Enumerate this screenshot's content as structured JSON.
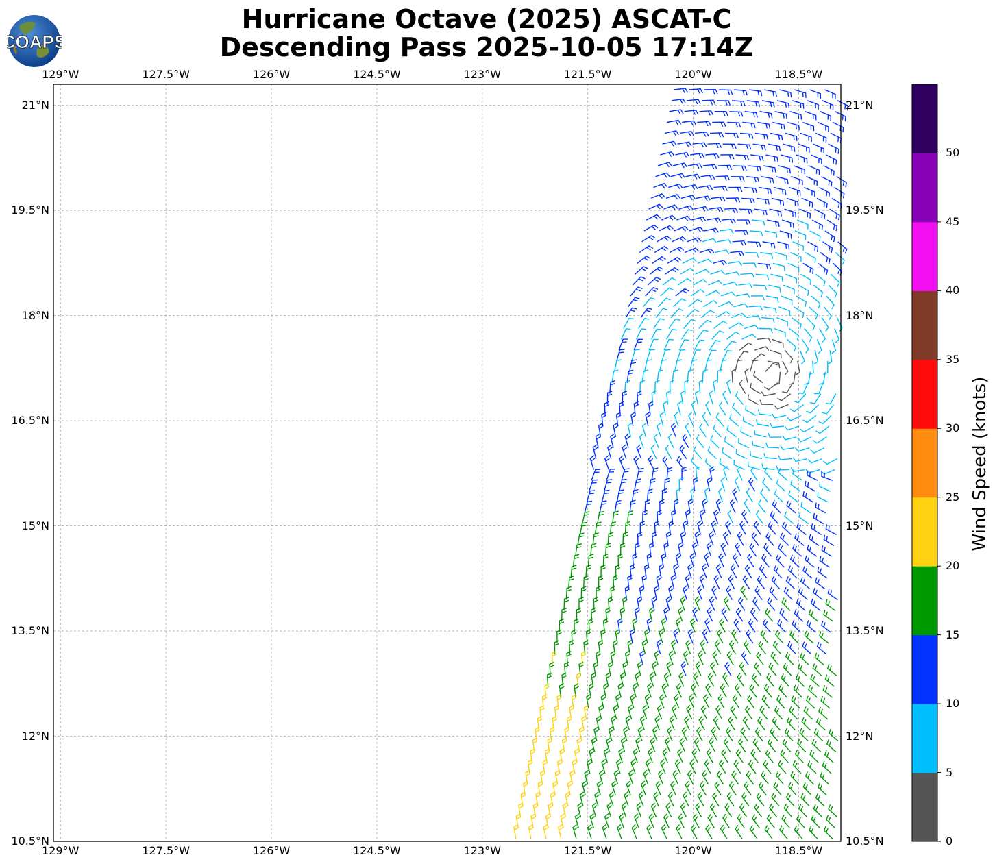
{
  "title_line1": "Hurricane Octave (2025) ASCAT-C",
  "title_line2": "Descending Pass 2025-10-05 17:14Z",
  "logo_text": "COAPS",
  "map": {
    "lon_ticks": [
      "129°W",
      "127.5°W",
      "126°W",
      "124.5°W",
      "123°W",
      "121.5°W",
      "120°W",
      "118.5°W"
    ],
    "lat_ticks": [
      "21°N",
      "19.5°N",
      "18°N",
      "16.5°N",
      "15°N",
      "13.5°N",
      "12°N",
      "10.5°N"
    ],
    "lon_range": [
      -129.1,
      -117.9
    ],
    "lat_range": [
      10.5,
      21.3
    ],
    "swath_description_shown": false
  },
  "colorbar": {
    "label": "Wind Speed (knots)",
    "ticks": [
      "0",
      "5",
      "10",
      "15",
      "20",
      "25",
      "30",
      "35",
      "40",
      "45",
      "50"
    ],
    "colors": [
      "#555555",
      "#00bfff",
      "#0033ff",
      "#009900",
      "#ffd311",
      "#ff8c0f",
      "#ff0d0d",
      "#7f3b28",
      "#f20ff2",
      "#8600b5",
      "#2f005f"
    ]
  },
  "chart_data": {
    "type": "wind-barbs",
    "x_label": "",
    "y_label": "",
    "speed_bins_kt": [
      0,
      5,
      10,
      15,
      20,
      25,
      30,
      35,
      40,
      45,
      50,
      55
    ]
  }
}
